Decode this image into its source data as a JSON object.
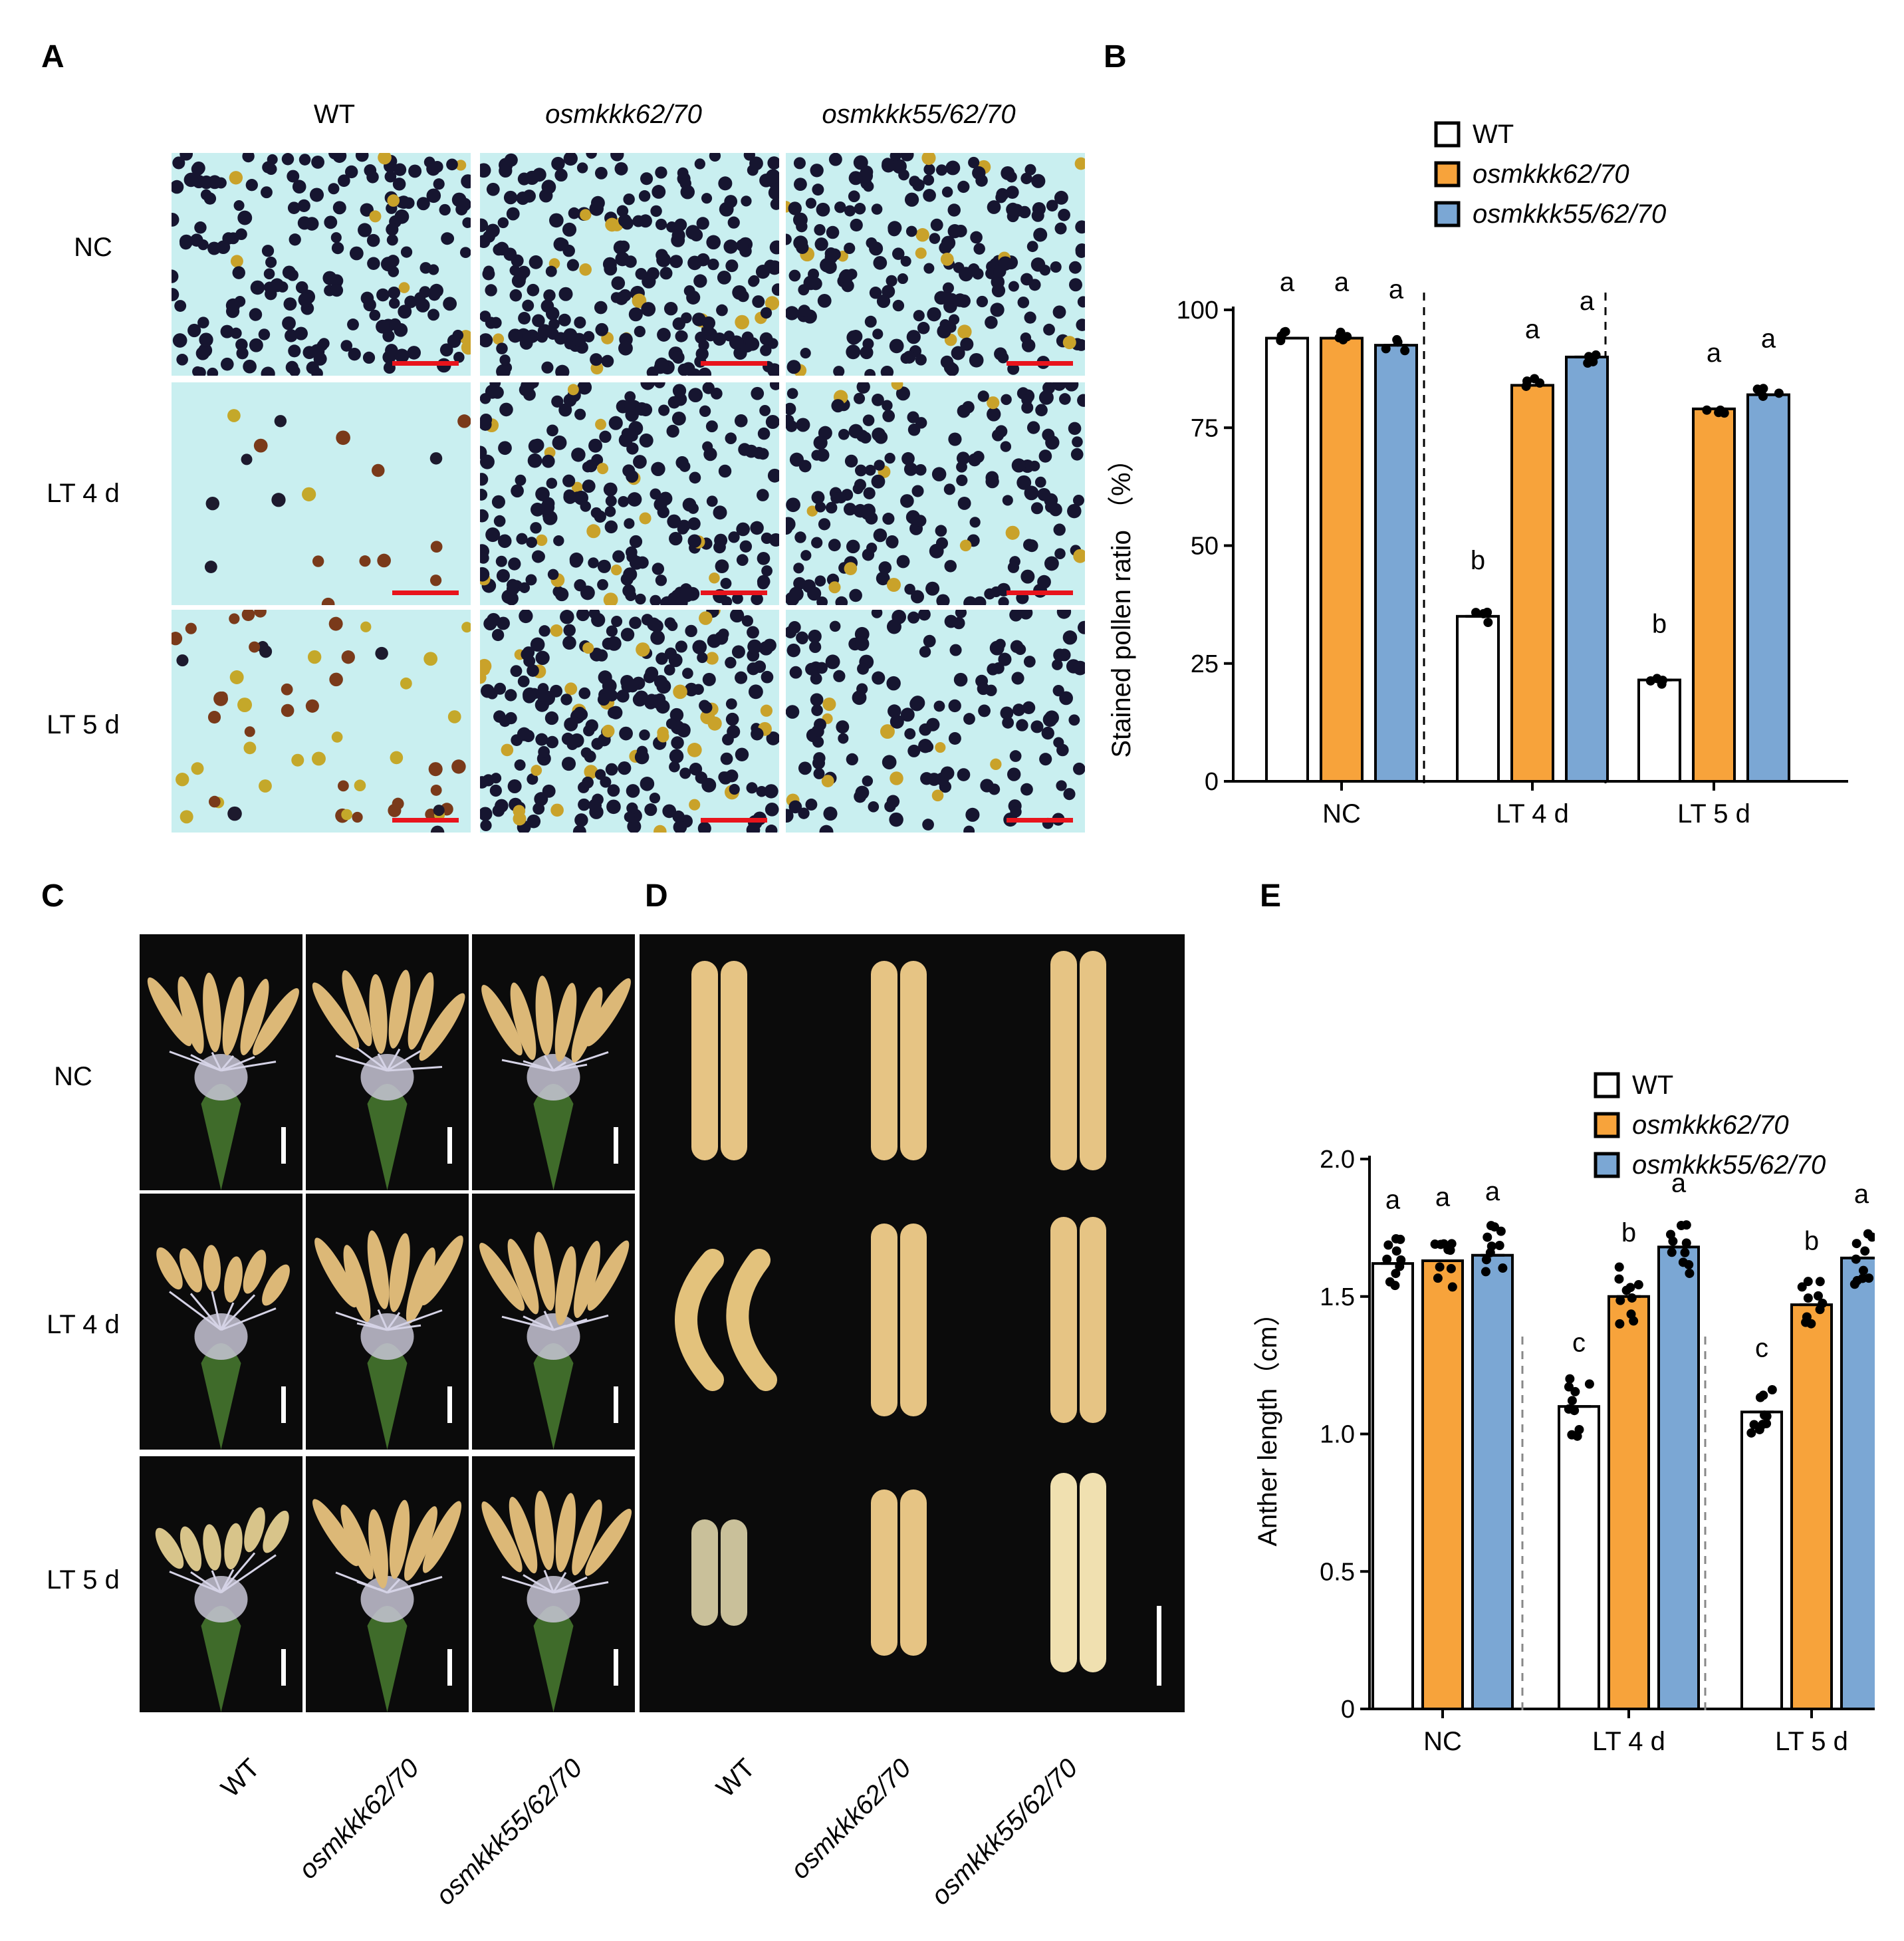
{
  "panel_letters": [
    "A",
    "B",
    "C",
    "D",
    "E"
  ],
  "genotypes": [
    "WT",
    "osmkkk62/70",
    "osmkkk55/62/70"
  ],
  "conditions": [
    "NC",
    "LT 4 d",
    "LT 5 d"
  ],
  "colors": {
    "wt": "#ffffff",
    "mkkk62_70": "#f7a33b",
    "mkkk55_62_70": "#7ba7d4",
    "scalebar": "#e8141c",
    "stain_bg": "#c9eff0"
  },
  "panelA": {
    "description_fill": "pollen I2-KI staining micrographs"
  },
  "chart_data": [
    {
      "type": "bar",
      "panel": "B",
      "categories": [
        "NC",
        "LT 4 d",
        "LT 5 d"
      ],
      "ylabel": "Stained pollen ratio （%）",
      "ylim": [
        0,
        100
      ],
      "yticks": [
        0,
        25,
        50,
        75,
        100
      ],
      "legend": [
        "WT",
        "osmkkk62/70",
        "osmkkk55/62/70"
      ],
      "legend_position": "top",
      "series": [
        {
          "name": "WT",
          "values": [
            94,
            35,
            21.5
          ],
          "letters": [
            "a",
            "b",
            "b"
          ]
        },
        {
          "name": "osmkkk62/70",
          "values": [
            94,
            84,
            79
          ],
          "letters": [
            "a",
            "a",
            "a"
          ]
        },
        {
          "name": "osmkkk55/62/70",
          "values": [
            92.5,
            90,
            82
          ],
          "letters": [
            "a",
            "a",
            "a"
          ]
        }
      ]
    },
    {
      "type": "bar",
      "panel": "E",
      "categories": [
        "NC",
        "LT 4 d",
        "LT 5 d"
      ],
      "ylabel": "Anther length（cm）",
      "ylim": [
        0,
        2.0
      ],
      "yticks": [
        "0",
        "0.5",
        "1.0",
        "1.5",
        "2.0"
      ],
      "legend": [
        "WT",
        "osmkkk62/70",
        "osmkkk55/62/70"
      ],
      "legend_position": "top-right",
      "series": [
        {
          "name": "WT",
          "values": [
            1.62,
            1.1,
            1.08
          ],
          "letters": [
            "a",
            "c",
            "c"
          ]
        },
        {
          "name": "osmkkk62/70",
          "values": [
            1.63,
            1.5,
            1.47
          ],
          "letters": [
            "a",
            "b",
            "b"
          ]
        },
        {
          "name": "osmkkk55/62/70",
          "values": [
            1.65,
            1.68,
            1.64
          ],
          "letters": [
            "a",
            "a",
            "a"
          ]
        }
      ]
    }
  ]
}
